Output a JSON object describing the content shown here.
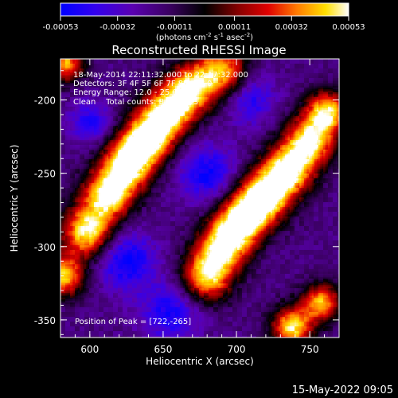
{
  "chart_data": {
    "type": "heatmap",
    "title": "Reconstructed RHESSI Image",
    "xlabel": "Heliocentric X (arcsec)",
    "ylabel": "Heliocentric Y (arcsec)",
    "xlim": [
      580,
      770
    ],
    "ylim": [
      -362,
      -172
    ],
    "x_ticks": [
      600,
      650,
      700,
      750
    ],
    "y_ticks": [
      -200,
      -250,
      -300,
      -350
    ],
    "colorbar": {
      "min": -0.00053,
      "max": 0.00053,
      "ticks": [
        -0.00053,
        -0.00032,
        -0.00011,
        0.00011,
        0.00032,
        0.00053
      ],
      "tick_labels": [
        "-0.00053",
        "-0.00032",
        "-0.00011",
        "0.00011",
        "0.00032",
        "0.00053"
      ],
      "label_line": "(photons cm",
      "label_sup1": "-2",
      "label_mid1": " s",
      "label_sup2": "-1",
      "label_mid2": " asec",
      "label_sup3": "-2",
      "label_end": ")"
    },
    "info": {
      "time": "18-May-2014 22:11:32.000 to 22:17:32.000",
      "detectors": "Detectors: 3F 4F 5F 6F 7F 8F, Att 0",
      "energy": "Energy Range: 12.0 - 25.0 keV",
      "clean": "Clean    Total counts: 8.62E+03",
      "peak": "Position of Peak = [722,-265]"
    },
    "features": [
      {
        "x": 582,
        "y": -320,
        "amp": 0.00045,
        "sx": 10,
        "sy": 10
      },
      {
        "x": 598,
        "y": -290,
        "amp": 0.0005,
        "sx": 12,
        "sy": 12
      },
      {
        "x": 612,
        "y": -265,
        "amp": 0.0005,
        "sx": 12,
        "sy": 12
      },
      {
        "x": 625,
        "y": -245,
        "amp": 0.0005,
        "sx": 12,
        "sy": 12
      },
      {
        "x": 638,
        "y": -228,
        "amp": 0.00052,
        "sx": 12,
        "sy": 12
      },
      {
        "x": 652,
        "y": -210,
        "amp": 0.0005,
        "sx": 12,
        "sy": 12
      },
      {
        "x": 668,
        "y": -193,
        "amp": 0.00046,
        "sx": 12,
        "sy": 12
      },
      {
        "x": 690,
        "y": -180,
        "amp": 0.0004,
        "sx": 12,
        "sy": 12
      },
      {
        "x": 583,
        "y": -175,
        "amp": 0.0004,
        "sx": 9,
        "sy": 9
      },
      {
        "x": 680,
        "y": -320,
        "amp": 0.00048,
        "sx": 12,
        "sy": 12
      },
      {
        "x": 692,
        "y": -298,
        "amp": 0.0005,
        "sx": 12,
        "sy": 12
      },
      {
        "x": 705,
        "y": -280,
        "amp": 0.00052,
        "sx": 12,
        "sy": 12
      },
      {
        "x": 720,
        "y": -265,
        "amp": 0.00053,
        "sx": 12,
        "sy": 12
      },
      {
        "x": 735,
        "y": -248,
        "amp": 0.0005,
        "sx": 12,
        "sy": 12
      },
      {
        "x": 750,
        "y": -228,
        "amp": 0.00048,
        "sx": 12,
        "sy": 12
      },
      {
        "x": 762,
        "y": -208,
        "amp": 0.00045,
        "sx": 10,
        "sy": 10
      },
      {
        "x": 738,
        "y": -355,
        "amp": 0.00048,
        "sx": 10,
        "sy": 10
      },
      {
        "x": 758,
        "y": -338,
        "amp": 0.0004,
        "sx": 9,
        "sy": 9
      },
      {
        "x": 625,
        "y": -310,
        "amp": -0.00035,
        "sx": 14,
        "sy": 14
      },
      {
        "x": 680,
        "y": -250,
        "amp": -0.00032,
        "sx": 14,
        "sy": 14
      },
      {
        "x": 655,
        "y": -345,
        "amp": -0.0003,
        "sx": 14,
        "sy": 14
      },
      {
        "x": 710,
        "y": -200,
        "amp": -0.00026,
        "sx": 12,
        "sy": 12
      },
      {
        "x": 600,
        "y": -215,
        "amp": -0.00028,
        "sx": 10,
        "sy": 10
      }
    ]
  },
  "footer": {
    "timestamp": "15-May-2022 09:05"
  },
  "colors": {
    "background": "#000000",
    "foreground": "#ffffff",
    "colormap_min": "#0000ff",
    "colormap_mid": "#000000",
    "colormap_max": "#ffffff"
  }
}
